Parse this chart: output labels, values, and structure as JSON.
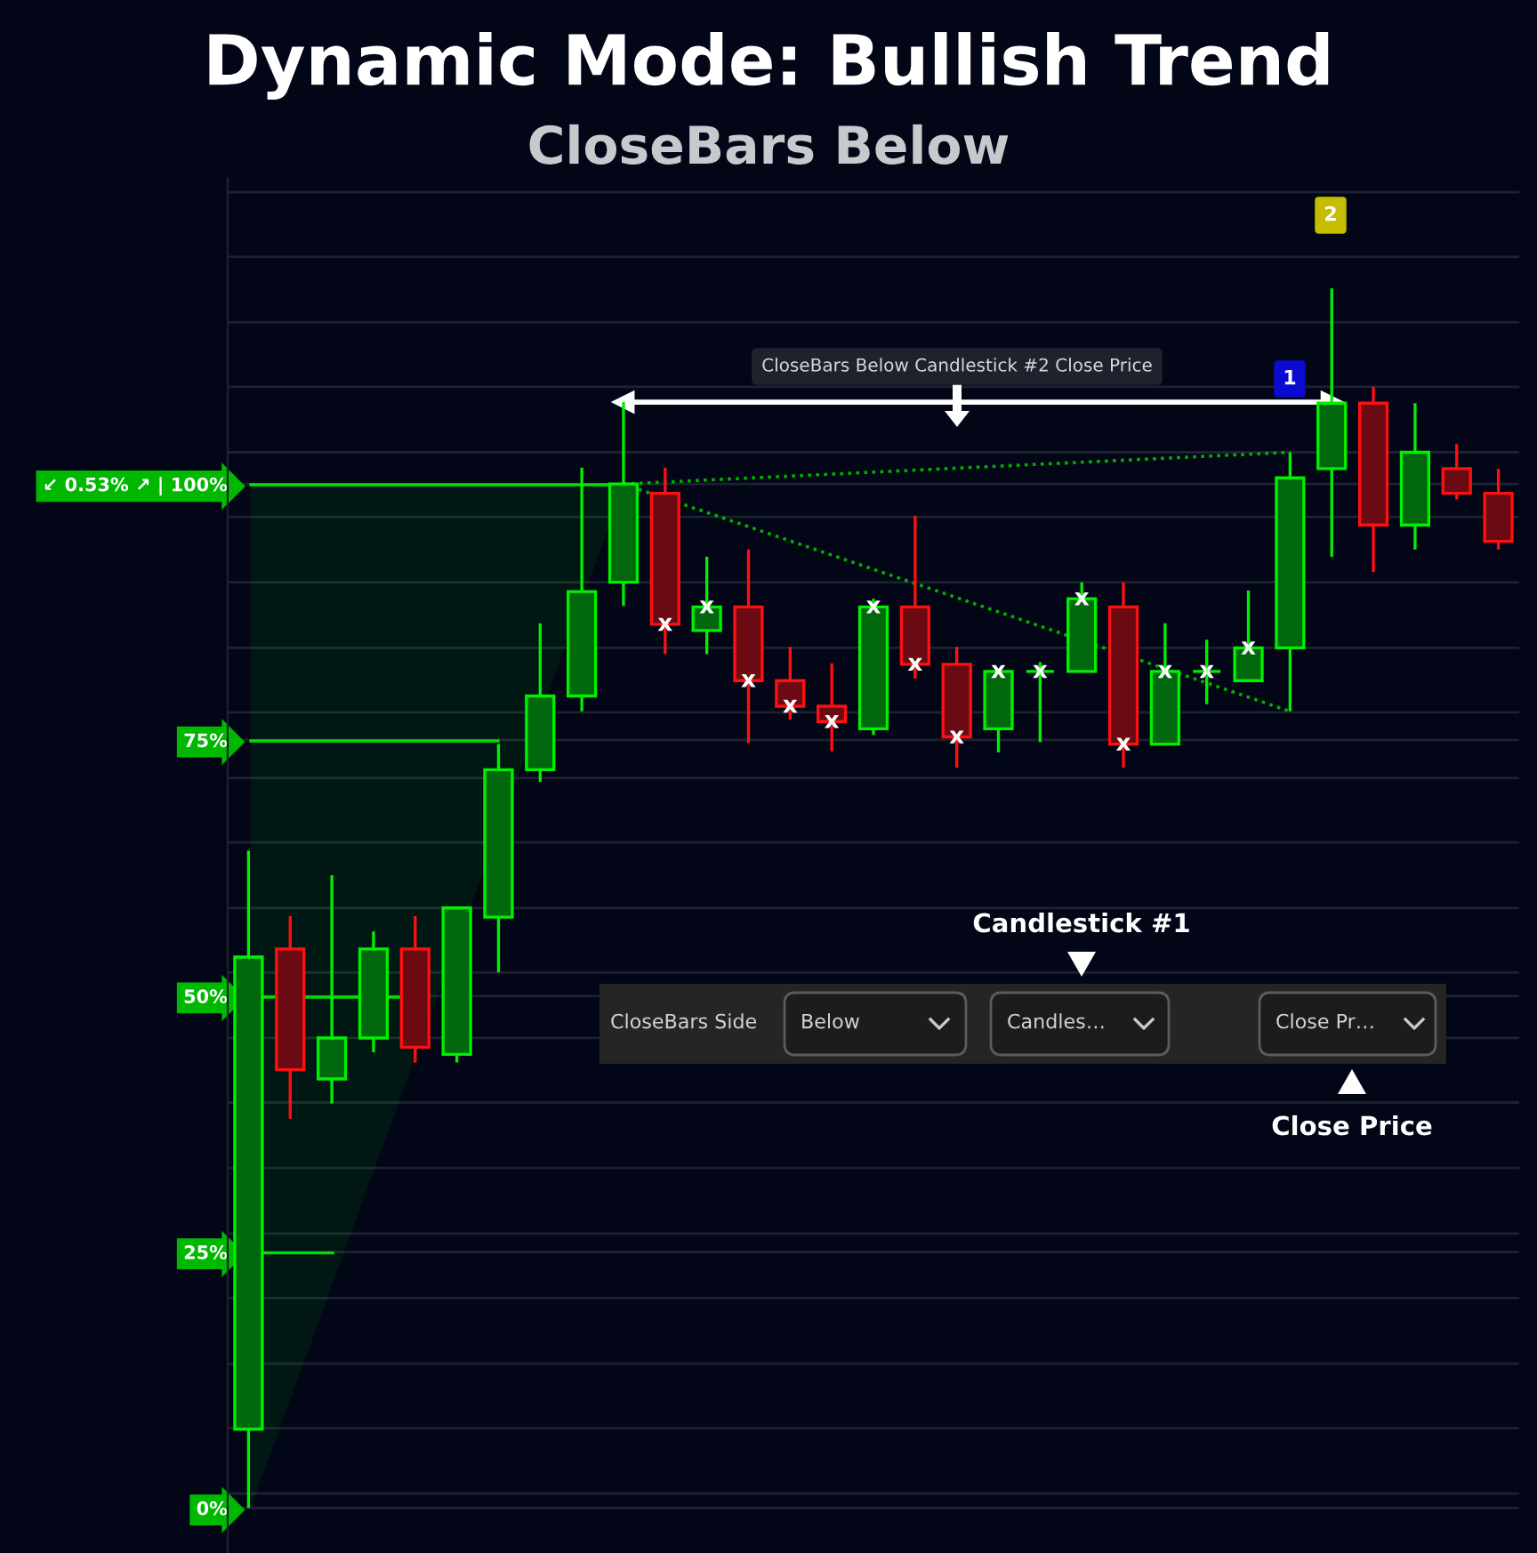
{
  "chart_data": {
    "type": "candlestick",
    "title": "Dynamic Mode: Bullish Trend",
    "subtitle": "CloseBars Below",
    "categories": [
      null,
      null,
      null,
      null,
      null,
      null,
      null,
      null,
      null,
      null,
      null,
      null,
      null,
      null,
      null,
      null,
      null,
      null,
      null,
      null,
      null,
      null,
      null,
      null,
      null,
      null,
      null,
      null,
      null,
      null,
      null
    ],
    "ohlc": [
      [
        7.7,
        64.2,
        0,
        53.8
      ],
      [
        54.6,
        57.8,
        38.0,
        42.8
      ],
      [
        41.9,
        61.8,
        39.5,
        45.9
      ],
      [
        45.9,
        56.3,
        44.5,
        54.6
      ],
      [
        54.6,
        57.8,
        43.5,
        45.0
      ],
      [
        44.3,
        58.6,
        43.5,
        58.6
      ],
      [
        57.7,
        74.6,
        52.3,
        72.1
      ],
      [
        72.1,
        86.4,
        70.9,
        79.3
      ],
      [
        79.3,
        101.6,
        77.8,
        89.5
      ],
      [
        90.4,
        108.0,
        88.1,
        100.0
      ],
      [
        99.1,
        101.6,
        83.4,
        86.3
      ],
      [
        85.7,
        92.9,
        83.4,
        88.0
      ],
      [
        88.0,
        93.6,
        74.7,
        80.8
      ],
      [
        80.8,
        84.1,
        77.0,
        78.3
      ],
      [
        78.3,
        82.5,
        73.9,
        76.8
      ],
      [
        76.1,
        88.8,
        75.5,
        88.0
      ],
      [
        88.0,
        96.9,
        81.0,
        82.4
      ],
      [
        82.4,
        84.1,
        72.3,
        75.3
      ],
      [
        76.1,
        81.9,
        73.8,
        81.7
      ],
      [
        81.7,
        82.6,
        74.8,
        81.7
      ],
      [
        81.7,
        90.4,
        81.7,
        88.8
      ],
      [
        88.0,
        90.4,
        72.3,
        74.6
      ],
      [
        74.6,
        86.4,
        74.6,
        81.7
      ],
      [
        81.7,
        84.8,
        78.5,
        81.7
      ],
      [
        80.8,
        89.6,
        80.8,
        84.0
      ],
      [
        84.0,
        103.1,
        77.8,
        100.6
      ],
      [
        101.5,
        119.1,
        92.9,
        107.9
      ],
      [
        107.9,
        109.5,
        91.4,
        96.0
      ],
      [
        96.0,
        107.9,
        93.6,
        103.1
      ],
      [
        101.5,
        103.9,
        98.5,
        99.1
      ],
      [
        99.1,
        101.5,
        93.6,
        94.4
      ]
    ],
    "colors": [
      "#00f000",
      "#ff1010",
      "#00f000",
      "#00f000",
      "#ff1010",
      "#00f000",
      "#00f000",
      "#00f000",
      "#00f000",
      "#00f000",
      "#ff1010",
      "#00f000",
      "#ff1010",
      "#ff1010",
      "#ff1010",
      "#00f000",
      "#ff1010",
      "#ff1010",
      "#00f000",
      "#00f000",
      "#00f000",
      "#ff1010",
      "#00f000",
      "#00f000",
      "#00f000",
      "#00f000",
      "#00f000",
      "#ff1010",
      "#00f000",
      "#ff1010",
      "#ff1010"
    ],
    "value_labels": [
      null,
      null,
      null,
      null,
      null,
      null,
      null,
      null,
      null,
      null,
      "x",
      "x",
      "x",
      "x",
      "x",
      "x",
      "x",
      "x",
      "x",
      "x",
      "x",
      "x",
      "x",
      "x",
      "x",
      null,
      null,
      null,
      null,
      null,
      null
    ],
    "series": [
      {
        "type": "line",
        "color": "#00b000",
        "line_style": "dotted",
        "values": [
          null,
          null,
          null,
          null,
          null,
          null,
          null,
          null,
          null,
          100.0,
          null,
          null,
          null,
          null,
          null,
          null,
          null,
          null,
          null,
          null,
          null,
          null,
          null,
          null,
          null,
          103.1,
          null,
          null,
          null,
          null,
          null
        ]
      },
      {
        "type": "line",
        "color": "#00b000",
        "line_style": "dotted",
        "values": [
          null,
          null,
          null,
          null,
          null,
          null,
          null,
          null,
          null,
          100.0,
          null,
          null,
          null,
          null,
          null,
          null,
          null,
          null,
          null,
          null,
          null,
          null,
          null,
          null,
          null,
          77.8,
          null,
          null,
          null,
          null,
          null
        ]
      },
      {
        "type": "line",
        "color": "#ffffff",
        "line_style": "solid",
        "marker": "triangle",
        "values": [
          null,
          null,
          null,
          null,
          null,
          null,
          null,
          null,
          null,
          108.0,
          null,
          null,
          null,
          null,
          null,
          null,
          null,
          null,
          null,
          null,
          null,
          null,
          null,
          null,
          null,
          null,
          108.0,
          null,
          null,
          null,
          null
        ]
      }
    ],
    "ylim": [
      -4.4,
      129.9
    ],
    "yticks": [
      {
        "value": 128.5,
        "label": null
      },
      {
        "value": 122.2,
        "label": null
      },
      {
        "value": 115.8,
        "label": null
      },
      {
        "value": 109.5,
        "label": null
      },
      {
        "value": 103.1,
        "label": null
      },
      {
        "value": 100,
        "label": "↙ 0.53% ↗ | 100%"
      },
      {
        "value": 96.8,
        "label": null
      },
      {
        "value": 90.4,
        "label": null
      },
      {
        "value": 84.0,
        "label": null
      },
      {
        "value": 77.7,
        "label": null
      },
      {
        "value": 75,
        "label": "75%"
      },
      {
        "value": 71.3,
        "label": null
      },
      {
        "value": 65.0,
        "label": null
      },
      {
        "value": 58.6,
        "label": null
      },
      {
        "value": 52.3,
        "label": null
      },
      {
        "value": 50,
        "label": "50%"
      },
      {
        "value": 45.9,
        "label": null
      },
      {
        "value": 39.6,
        "label": null
      },
      {
        "value": 33.2,
        "label": null
      },
      {
        "value": 26.8,
        "label": null
      },
      {
        "value": 25,
        "label": "25%"
      },
      {
        "value": 20.5,
        "label": null
      },
      {
        "value": 14.1,
        "label": null
      },
      {
        "value": 7.8,
        "label": null
      },
      {
        "value": 1.4,
        "label": null
      },
      {
        "value": 0,
        "label": "0%"
      }
    ],
    "grid": "y",
    "tick_labels": "y",
    "annotations": [
      "2",
      "1",
      "CloseBars Below Candlestick #2 Close Price",
      "Candlestick #1",
      "Close Price",
      "CloseBars Side",
      "Below",
      "Candles…",
      "Close Pr…"
    ]
  }
}
